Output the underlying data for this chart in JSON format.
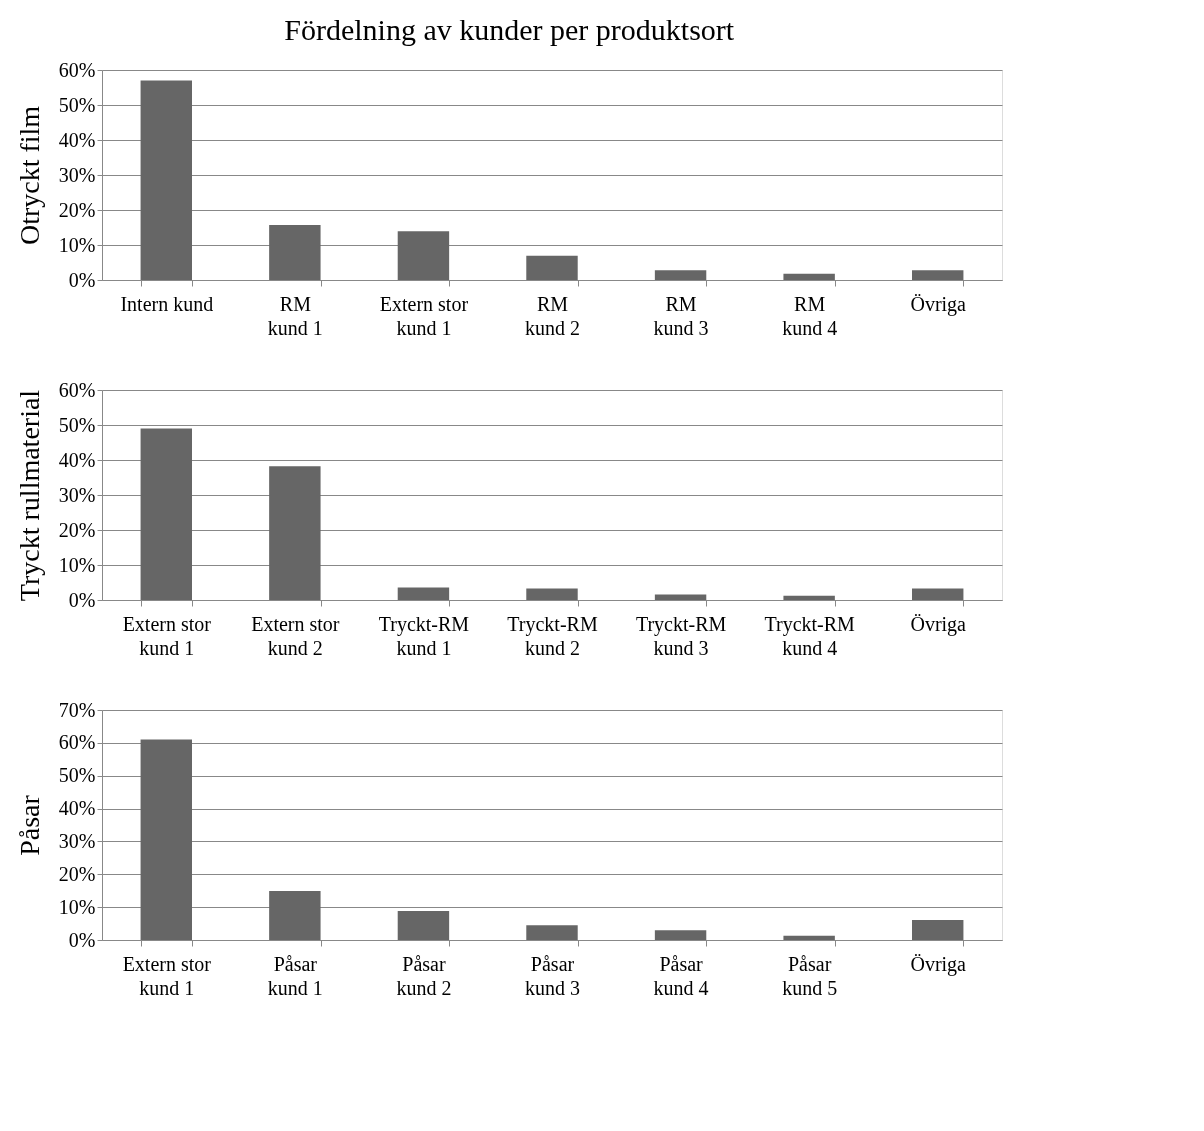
{
  "chart_data": [
    {
      "type": "bar",
      "title": "Fördelning av kunder per produktsort",
      "ylabel": "Otryckt film",
      "categories": [
        "Intern kund",
        "RM kund 1",
        "Extern stor kund 1",
        "RM kund 2",
        "RM kund 3",
        "RM kund 4",
        "Övriga"
      ],
      "values": [
        57,
        15.7,
        13.9,
        6.9,
        2.8,
        1.8,
        2.8
      ],
      "color": "#666666",
      "ylim": [
        0,
        60
      ],
      "yticks": [
        {
          "value": 0,
          "label": "0%"
        },
        {
          "value": 10,
          "label": "10%"
        },
        {
          "value": 20,
          "label": "20%"
        },
        {
          "value": 30,
          "label": "30%"
        },
        {
          "value": 40,
          "label": "40%"
        },
        {
          "value": 50,
          "label": "50%"
        },
        {
          "value": 60,
          "label": "60%"
        }
      ],
      "grid": "y"
    },
    {
      "type": "bar",
      "ylabel": "Tryckt rullmaterial",
      "categories": [
        "Extern stor kund 1",
        "Extern stor kund 2",
        "Tryckt-RM kund 1",
        "Tryckt-RM kund 2",
        "Tryckt-RM kund 3",
        "Tryckt-RM kund 4",
        "Övriga"
      ],
      "values": [
        49,
        38.2,
        3.6,
        3.3,
        1.6,
        1.2,
        3.3
      ],
      "color": "#666666",
      "ylim": [
        0,
        60
      ],
      "yticks": [
        {
          "value": 0,
          "label": "0%"
        },
        {
          "value": 10,
          "label": "10%"
        },
        {
          "value": 20,
          "label": "20%"
        },
        {
          "value": 30,
          "label": "30%"
        },
        {
          "value": 40,
          "label": "40%"
        },
        {
          "value": 50,
          "label": "50%"
        },
        {
          "value": 60,
          "label": "60%"
        }
      ],
      "grid": "y"
    },
    {
      "type": "bar",
      "ylabel": "Påsar",
      "categories": [
        "Extern stor kund 1",
        "Påsar kund 1",
        "Påsar kund 2",
        "Påsar kund 3",
        "Påsar kund 4",
        "Påsar kund 5",
        "Övriga"
      ],
      "values": [
        61,
        14.9,
        8.8,
        4.5,
        3.0,
        1.3,
        6.1
      ],
      "color": "#666666",
      "ylim": [
        0,
        70
      ],
      "yticks": [
        {
          "value": 0,
          "label": "0%"
        },
        {
          "value": 10,
          "label": "10%"
        },
        {
          "value": 20,
          "label": "20%"
        },
        {
          "value": 30,
          "label": "30%"
        },
        {
          "value": 40,
          "label": "40%"
        },
        {
          "value": 50,
          "label": "50%"
        },
        {
          "value": 60,
          "label": "60%"
        },
        {
          "value": 70,
          "label": "70%"
        }
      ],
      "grid": "y"
    }
  ]
}
